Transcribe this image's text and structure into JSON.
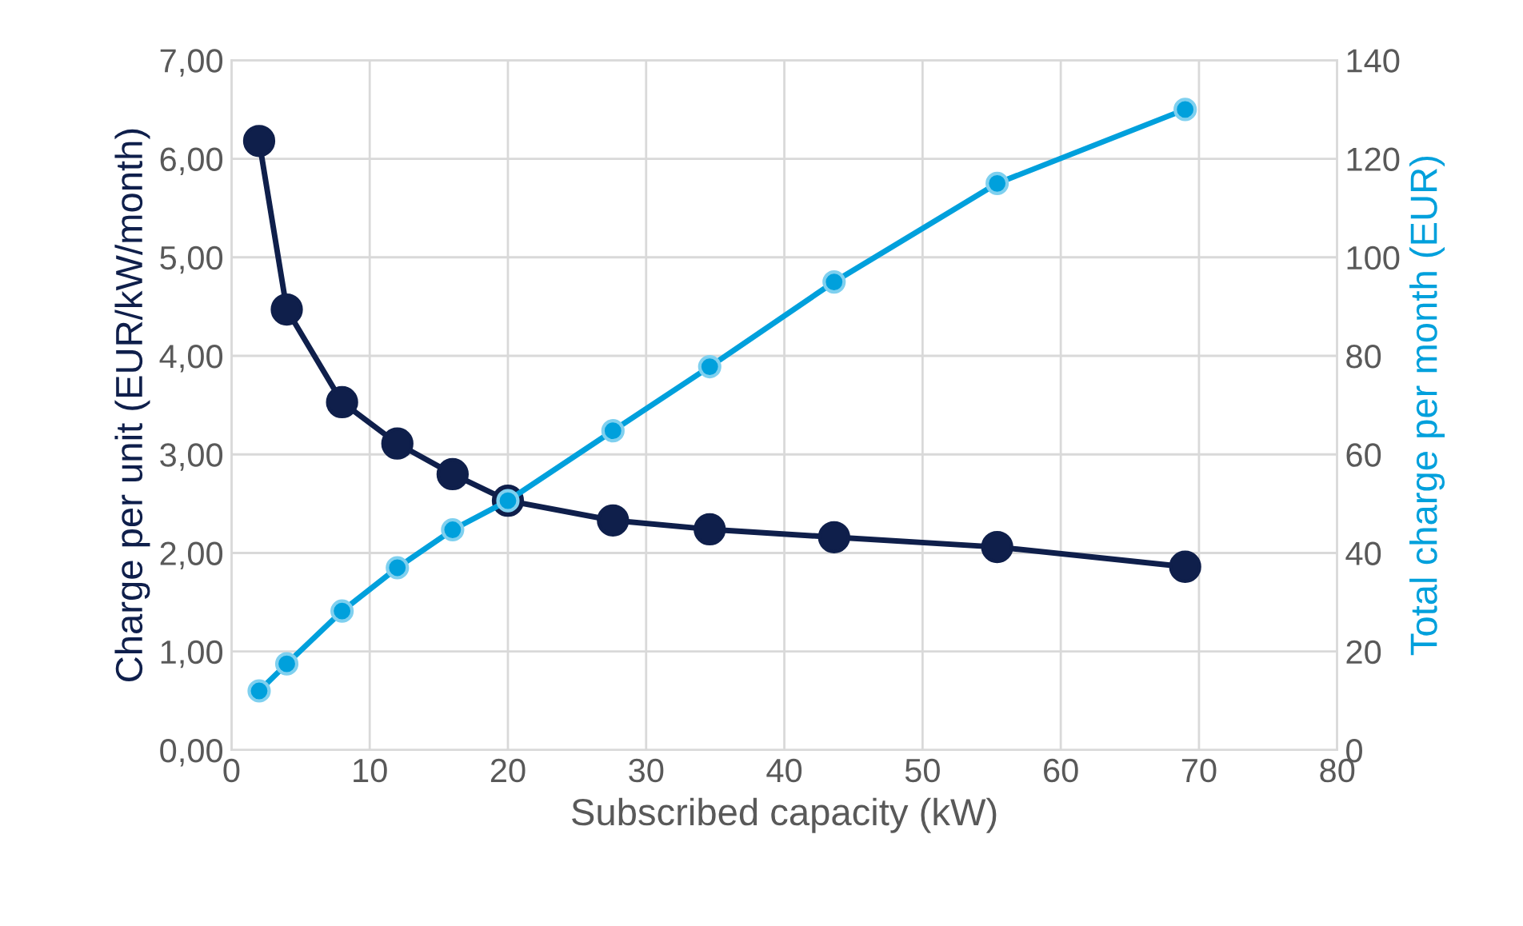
{
  "chart_data": {
    "type": "line",
    "xlabel": "Subscribed capacity (kW)",
    "ylabel": "Charge per unit (EUR/kW/month)",
    "y2label": "Total charge per month (EUR)",
    "xlim": [
      0,
      80
    ],
    "xticks": [
      0,
      10,
      20,
      30,
      40,
      50,
      60,
      70,
      80
    ],
    "ylim": [
      0,
      7
    ],
    "yticks": [
      {
        "value": 0,
        "label": "0,00"
      },
      {
        "value": 1,
        "label": "1,00"
      },
      {
        "value": 2,
        "label": "2,00"
      },
      {
        "value": 3,
        "label": "3,00"
      },
      {
        "value": 4,
        "label": "4,00"
      },
      {
        "value": 5,
        "label": "5,00"
      },
      {
        "value": 6,
        "label": "6,00"
      },
      {
        "value": 7,
        "label": "7,00"
      }
    ],
    "y2lim": [
      0,
      140
    ],
    "y2ticks": [
      0,
      20,
      40,
      60,
      80,
      100,
      120,
      140
    ],
    "grid": true,
    "marker": "circle",
    "line_style": "solid",
    "x": [
      2,
      4,
      8,
      12,
      16,
      20,
      27.6,
      34.6,
      43.6,
      55.4,
      69
    ],
    "series": [
      {
        "color": "#0f1f4b",
        "values": [
          6.18,
          4.47,
          3.53,
          3.11,
          2.8,
          2.53,
          2.33,
          2.24,
          2.16,
          2.06,
          1.86
        ]
      },
      {
        "color": "#00a0dc",
        "axis": "y2",
        "values": [
          12,
          17.5,
          28.2,
          37,
          44.7,
          50.6,
          64.8,
          77.8,
          95,
          115,
          130
        ]
      }
    ]
  }
}
